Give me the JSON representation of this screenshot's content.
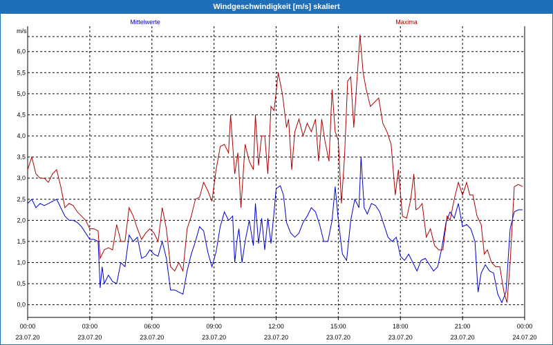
{
  "window": {
    "title": "Windgeschwindigkeit [m/s] skaliert"
  },
  "colors": {
    "titlebar": "#1f6fb8",
    "mean": "#0000cc",
    "max": "#aa0000",
    "grid": "#000000"
  },
  "chart_data": {
    "type": "line",
    "ylabel": "m/s",
    "ylim": [
      -0.3,
      6.6
    ],
    "yticks": [
      0.0,
      0.5,
      1.0,
      1.5,
      2.0,
      2.5,
      3.0,
      3.5,
      4.0,
      4.5,
      5.0,
      5.5,
      6.0
    ],
    "ytick_labels": [
      "0,0",
      "0,5",
      "1,0",
      "1,5",
      "2,0",
      "2,5",
      "3,0",
      "3,5",
      "4,0",
      "4,5",
      "5,0",
      "5,5",
      "6,0"
    ],
    "xlim_hours": [
      0,
      24
    ],
    "xticks": [
      {
        "hour": 0,
        "time": "00:00",
        "date": "23.07.20"
      },
      {
        "hour": 3,
        "time": "03:00",
        "date": "23.07.20"
      },
      {
        "hour": 6,
        "time": "06:00",
        "date": "23.07.20"
      },
      {
        "hour": 9,
        "time": "09:00",
        "date": "23.07.20"
      },
      {
        "hour": 12,
        "time": "12:00",
        "date": "23.07.20"
      },
      {
        "hour": 15,
        "time": "15:00",
        "date": "23.07.20"
      },
      {
        "hour": 18,
        "time": "18:00",
        "date": "23.07.20"
      },
      {
        "hour": 21,
        "time": "21:00",
        "date": "23.07.20"
      },
      {
        "hour": 24,
        "time": "00:00",
        "date": "24.07.20"
      }
    ],
    "grid": true,
    "series": [
      {
        "name": "Mittelwerte",
        "color": "#0000cc",
        "points": [
          [
            0.0,
            2.4
          ],
          [
            0.2,
            2.5
          ],
          [
            0.4,
            2.3
          ],
          [
            0.6,
            2.4
          ],
          [
            0.8,
            2.35
          ],
          [
            1.0,
            2.4
          ],
          [
            1.2,
            2.45
          ],
          [
            1.4,
            2.5
          ],
          [
            1.6,
            2.3
          ],
          [
            1.8,
            2.1
          ],
          [
            2.0,
            2.0
          ],
          [
            2.2,
            2.0
          ],
          [
            2.4,
            1.95
          ],
          [
            2.6,
            1.85
          ],
          [
            2.8,
            1.7
          ],
          [
            3.0,
            1.55
          ],
          [
            3.2,
            1.55
          ],
          [
            3.4,
            1.5
          ],
          [
            3.5,
            0.4
          ],
          [
            3.6,
            0.9
          ],
          [
            3.7,
            0.5
          ],
          [
            3.9,
            0.7
          ],
          [
            4.1,
            0.55
          ],
          [
            4.3,
            0.5
          ],
          [
            4.5,
            1.0
          ],
          [
            4.7,
            0.9
          ],
          [
            4.9,
            1.65
          ],
          [
            5.1,
            1.5
          ],
          [
            5.3,
            1.6
          ],
          [
            5.5,
            1.1
          ],
          [
            5.7,
            1.15
          ],
          [
            5.9,
            1.3
          ],
          [
            6.1,
            1.2
          ],
          [
            6.3,
            1.15
          ],
          [
            6.5,
            1.5
          ],
          [
            6.7,
            1.1
          ],
          [
            6.9,
            0.35
          ],
          [
            7.1,
            0.35
          ],
          [
            7.3,
            0.3
          ],
          [
            7.5,
            0.25
          ],
          [
            7.7,
            0.8
          ],
          [
            7.9,
            1.2
          ],
          [
            8.1,
            1.5
          ],
          [
            8.3,
            1.85
          ],
          [
            8.5,
            1.75
          ],
          [
            8.7,
            1.25
          ],
          [
            8.9,
            0.9
          ],
          [
            9.1,
            1.25
          ],
          [
            9.3,
            1.85
          ],
          [
            9.5,
            2.2
          ],
          [
            9.7,
            2.0
          ],
          [
            9.9,
            2.1
          ],
          [
            10.0,
            1.0
          ],
          [
            10.1,
            1.5
          ],
          [
            10.2,
            1.8
          ],
          [
            10.35,
            1.0
          ],
          [
            10.5,
            1.5
          ],
          [
            10.7,
            2.0
          ],
          [
            10.9,
            1.4
          ],
          [
            11.0,
            2.4
          ],
          [
            11.15,
            1.45
          ],
          [
            11.3,
            2.05
          ],
          [
            11.45,
            1.3
          ],
          [
            11.6,
            2.05
          ],
          [
            11.75,
            1.45
          ],
          [
            11.9,
            2.2
          ],
          [
            12.0,
            2.75
          ],
          [
            12.2,
            2.82
          ],
          [
            12.35,
            2.6
          ],
          [
            12.5,
            1.95
          ],
          [
            12.7,
            1.7
          ],
          [
            12.9,
            1.6
          ],
          [
            13.1,
            1.7
          ],
          [
            13.3,
            1.95
          ],
          [
            13.5,
            2.1
          ],
          [
            13.7,
            2.3
          ],
          [
            13.9,
            2.2
          ],
          [
            14.1,
            1.9
          ],
          [
            14.3,
            1.5
          ],
          [
            14.5,
            1.5
          ],
          [
            14.7,
            2.0
          ],
          [
            14.85,
            2.8
          ],
          [
            15.0,
            2.0
          ],
          [
            15.2,
            1.2
          ],
          [
            15.4,
            1.05
          ],
          [
            15.6,
            2.0
          ],
          [
            15.8,
            2.5
          ],
          [
            16.0,
            2.3
          ],
          [
            16.1,
            3.5
          ],
          [
            16.25,
            2.3
          ],
          [
            16.4,
            2.15
          ],
          [
            16.6,
            2.4
          ],
          [
            16.8,
            2.35
          ],
          [
            17.0,
            2.2
          ],
          [
            17.2,
            1.9
          ],
          [
            17.4,
            1.6
          ],
          [
            17.6,
            1.5
          ],
          [
            17.8,
            1.6
          ],
          [
            18.0,
            1.15
          ],
          [
            18.2,
            1.05
          ],
          [
            18.4,
            1.2
          ],
          [
            18.6,
            1.0
          ],
          [
            18.8,
            0.8
          ],
          [
            19.0,
            1.05
          ],
          [
            19.2,
            1.1
          ],
          [
            19.4,
            0.95
          ],
          [
            19.6,
            0.8
          ],
          [
            19.8,
            0.9
          ],
          [
            20.0,
            1.35
          ],
          [
            20.2,
            1.95
          ],
          [
            20.4,
            2.2
          ],
          [
            20.6,
            2.05
          ],
          [
            20.8,
            2.4
          ],
          [
            21.0,
            1.85
          ],
          [
            21.2,
            1.9
          ],
          [
            21.4,
            1.8
          ],
          [
            21.6,
            1.5
          ],
          [
            21.75,
            0.3
          ],
          [
            21.9,
            0.75
          ],
          [
            22.1,
            0.95
          ],
          [
            22.3,
            0.8
          ],
          [
            22.5,
            0.75
          ],
          [
            22.7,
            0.25
          ],
          [
            22.9,
            0.05
          ],
          [
            23.1,
            0.3
          ],
          [
            23.3,
            1.8
          ],
          [
            23.5,
            2.2
          ],
          [
            23.7,
            2.25
          ],
          [
            23.9,
            2.25
          ]
        ]
      },
      {
        "name": "Maxima",
        "color": "#aa0000",
        "points": [
          [
            0.0,
            3.2
          ],
          [
            0.2,
            3.5
          ],
          [
            0.4,
            3.1
          ],
          [
            0.6,
            3.0
          ],
          [
            0.8,
            3.0
          ],
          [
            1.0,
            2.9
          ],
          [
            1.2,
            3.1
          ],
          [
            1.4,
            3.2
          ],
          [
            1.6,
            2.8
          ],
          [
            1.8,
            2.3
          ],
          [
            2.0,
            2.4
          ],
          [
            2.2,
            2.35
          ],
          [
            2.4,
            2.2
          ],
          [
            2.6,
            2.1
          ],
          [
            2.8,
            2.0
          ],
          [
            3.0,
            1.8
          ],
          [
            3.2,
            1.8
          ],
          [
            3.4,
            1.75
          ],
          [
            3.5,
            1.1
          ],
          [
            3.7,
            1.3
          ],
          [
            3.9,
            1.35
          ],
          [
            4.1,
            1.3
          ],
          [
            4.3,
            1.9
          ],
          [
            4.5,
            1.5
          ],
          [
            4.7,
            1.5
          ],
          [
            4.9,
            2.3
          ],
          [
            5.1,
            2.1
          ],
          [
            5.3,
            1.8
          ],
          [
            5.5,
            1.55
          ],
          [
            5.7,
            1.7
          ],
          [
            5.9,
            1.8
          ],
          [
            6.1,
            1.7
          ],
          [
            6.3,
            1.5
          ],
          [
            6.5,
            2.3
          ],
          [
            6.7,
            1.8
          ],
          [
            6.9,
            0.9
          ],
          [
            7.1,
            0.8
          ],
          [
            7.3,
            1.0
          ],
          [
            7.5,
            0.8
          ],
          [
            7.7,
            1.8
          ],
          [
            7.9,
            2.1
          ],
          [
            8.1,
            2.5
          ],
          [
            8.3,
            2.55
          ],
          [
            8.5,
            2.9
          ],
          [
            8.7,
            2.7
          ],
          [
            8.9,
            2.45
          ],
          [
            9.1,
            3.2
          ],
          [
            9.3,
            3.75
          ],
          [
            9.5,
            3.8
          ],
          [
            9.7,
            3.6
          ],
          [
            9.8,
            4.5
          ],
          [
            10.0,
            3.1
          ],
          [
            10.15,
            3.6
          ],
          [
            10.3,
            2.3
          ],
          [
            10.5,
            3.8
          ],
          [
            10.7,
            3.4
          ],
          [
            10.9,
            3.2
          ],
          [
            11.0,
            4.5
          ],
          [
            11.15,
            3.3
          ],
          [
            11.3,
            4.0
          ],
          [
            11.45,
            4.0
          ],
          [
            11.6,
            3.1
          ],
          [
            11.75,
            4.7
          ],
          [
            11.9,
            4.6
          ],
          [
            12.1,
            5.5
          ],
          [
            12.3,
            5.0
          ],
          [
            12.5,
            4.2
          ],
          [
            12.6,
            4.4
          ],
          [
            12.75,
            3.2
          ],
          [
            12.9,
            4.1
          ],
          [
            13.1,
            4.4
          ],
          [
            13.3,
            4.0
          ],
          [
            13.5,
            4.3
          ],
          [
            13.7,
            4.1
          ],
          [
            13.9,
            4.4
          ],
          [
            14.05,
            3.4
          ],
          [
            14.2,
            4.4
          ],
          [
            14.35,
            3.9
          ],
          [
            14.55,
            3.4
          ],
          [
            14.7,
            5.1
          ],
          [
            14.85,
            4.1
          ],
          [
            15.0,
            3.9
          ],
          [
            15.15,
            2.4
          ],
          [
            15.3,
            3.5
          ],
          [
            15.45,
            5.3
          ],
          [
            15.6,
            5.4
          ],
          [
            15.75,
            4.2
          ],
          [
            15.9,
            5.3
          ],
          [
            16.05,
            6.4
          ],
          [
            16.2,
            5.5
          ],
          [
            16.35,
            5.1
          ],
          [
            16.55,
            4.7
          ],
          [
            16.75,
            4.8
          ],
          [
            16.95,
            4.9
          ],
          [
            17.15,
            4.3
          ],
          [
            17.35,
            4.1
          ],
          [
            17.55,
            3.8
          ],
          [
            17.75,
            2.6
          ],
          [
            17.9,
            3.2
          ],
          [
            18.1,
            2.1
          ],
          [
            18.3,
            2.05
          ],
          [
            18.5,
            2.5
          ],
          [
            18.65,
            3.1
          ],
          [
            18.75,
            2.25
          ],
          [
            18.9,
            2.3
          ],
          [
            19.05,
            2.4
          ],
          [
            19.25,
            1.6
          ],
          [
            19.45,
            1.8
          ],
          [
            19.65,
            1.4
          ],
          [
            19.85,
            1.3
          ],
          [
            20.05,
            1.3
          ],
          [
            20.25,
            2.1
          ],
          [
            20.4,
            2.0
          ],
          [
            20.6,
            2.5
          ],
          [
            20.8,
            2.9
          ],
          [
            21.0,
            2.6
          ],
          [
            21.2,
            2.9
          ],
          [
            21.35,
            2.6
          ],
          [
            21.5,
            2.6
          ],
          [
            21.7,
            2.1
          ],
          [
            21.9,
            1.9
          ],
          [
            22.05,
            1.2
          ],
          [
            22.2,
            1.3
          ],
          [
            22.4,
            1.0
          ],
          [
            22.6,
            0.9
          ],
          [
            22.8,
            0.9
          ],
          [
            23.0,
            0.3
          ],
          [
            23.15,
            0.05
          ],
          [
            23.3,
            1.0
          ],
          [
            23.5,
            2.8
          ],
          [
            23.7,
            2.85
          ],
          [
            23.9,
            2.8
          ]
        ]
      }
    ]
  }
}
